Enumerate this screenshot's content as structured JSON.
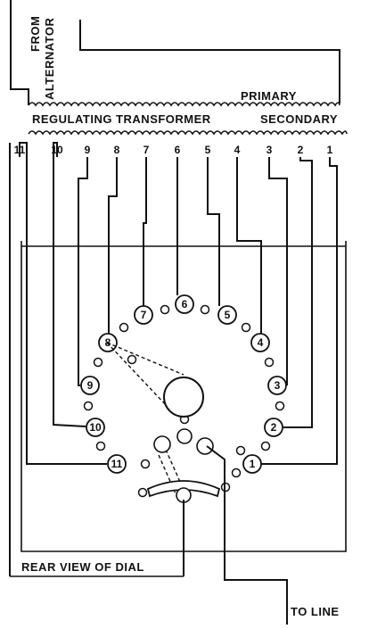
{
  "labels": {
    "from": "FROM",
    "alternator": "ALTERNATOR",
    "primary": "PRIMARY",
    "regulating_transformer": "REGULATING TRANSFORMER",
    "secondary": "SECONDARY",
    "rear_view": "REAR VIEW OF DIAL",
    "to_line": "TO LINE"
  },
  "taps": [
    "11",
    "10",
    "9",
    "8",
    "7",
    "6",
    "5",
    "4",
    "3",
    "2",
    "1"
  ],
  "dial_contacts": [
    "7",
    "6",
    "5",
    "8",
    "4",
    "9",
    "3",
    "10",
    "2",
    "11",
    "1"
  ]
}
